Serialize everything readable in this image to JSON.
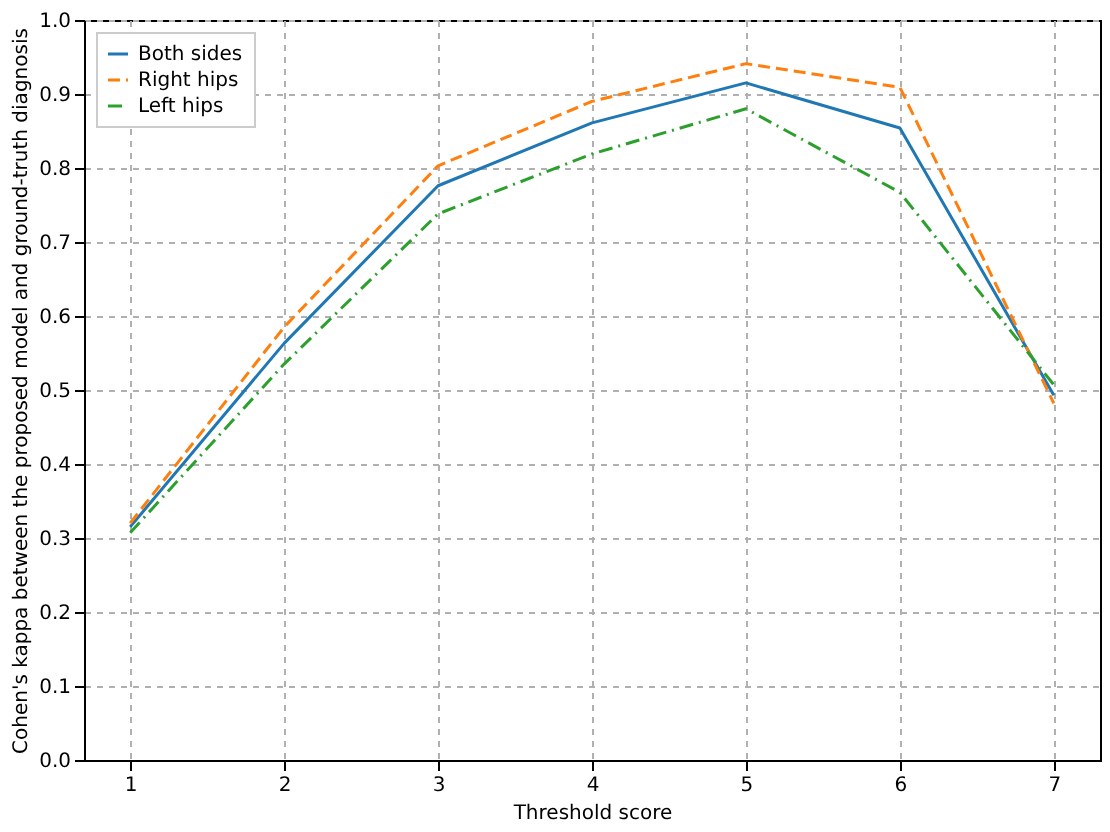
{
  "chart_data": {
    "type": "line",
    "xlabel": "Threshold score",
    "ylabel": "Cohen's kappa between the proposed model and ground-truth diagnosis",
    "x": [
      1,
      2,
      3,
      4,
      5,
      6,
      7
    ],
    "series": [
      {
        "name": "Both sides",
        "color": "#1f77b4",
        "line_style": "solid",
        "values": [
          0.315,
          0.563,
          0.776,
          0.861,
          0.915,
          0.854,
          0.493
        ]
      },
      {
        "name": "Right hips",
        "color": "#ff7f0e",
        "line_style": "dashed",
        "values": [
          0.32,
          0.585,
          0.803,
          0.89,
          0.941,
          0.909,
          0.482
        ]
      },
      {
        "name": "Left hips",
        "color": "#2ca02c",
        "line_style": "dashdot",
        "values": [
          0.307,
          0.535,
          0.738,
          0.819,
          0.88,
          0.767,
          0.507
        ]
      }
    ],
    "xlim": [
      0.7,
      7.3
    ],
    "xticks": [
      1,
      2,
      3,
      4,
      5,
      6,
      7
    ],
    "ylim": [
      0,
      1.0
    ],
    "yticks": [
      {
        "value": 0,
        "label": "0.0"
      },
      0.1,
      0.2,
      0.3,
      0.4,
      0.5,
      0.6,
      0.7,
      0.8,
      0.9,
      {
        "value": 1,
        "label": "1.0"
      }
    ],
    "grid": true,
    "legend": "top left",
    "marker": "none"
  }
}
